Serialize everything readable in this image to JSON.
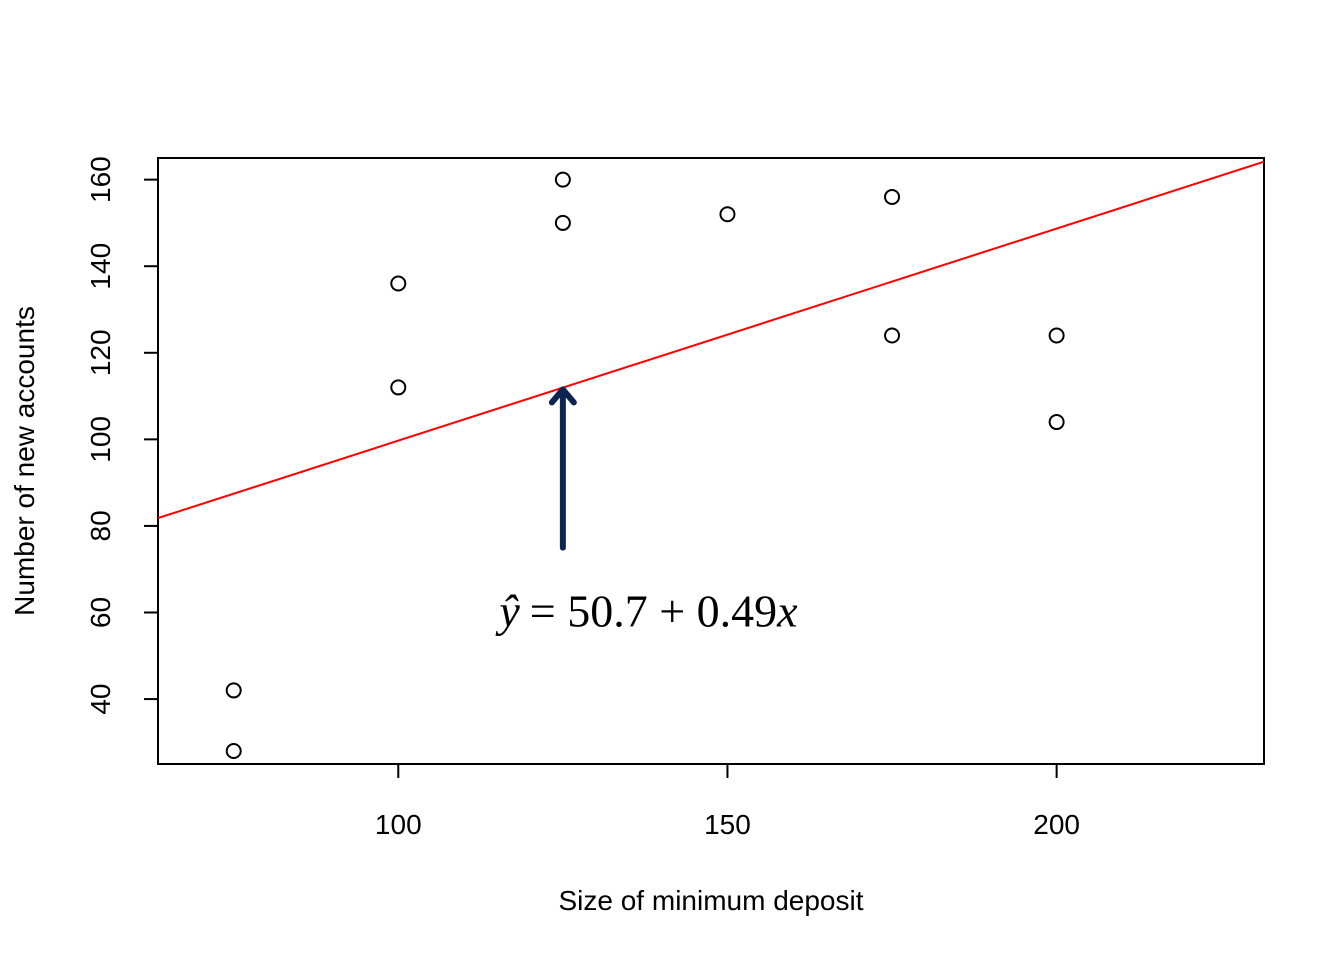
{
  "chart_data": {
    "type": "scatter",
    "title": "",
    "xlabel": "Size of minimum deposit",
    "ylabel": "Number of new accounts",
    "xlim": [
      63.5,
      231.5
    ],
    "ylim": [
      25.0,
      165.0
    ],
    "x_ticks": [
      100,
      150,
      200
    ],
    "y_ticks": [
      40,
      60,
      80,
      100,
      120,
      140,
      160
    ],
    "points": [
      {
        "x": 75,
        "y": 28
      },
      {
        "x": 75,
        "y": 42
      },
      {
        "x": 100,
        "y": 112
      },
      {
        "x": 100,
        "y": 136
      },
      {
        "x": 125,
        "y": 150
      },
      {
        "x": 125,
        "y": 160
      },
      {
        "x": 150,
        "y": 152
      },
      {
        "x": 175,
        "y": 124
      },
      {
        "x": 175,
        "y": 156
      },
      {
        "x": 200,
        "y": 104
      },
      {
        "x": 200,
        "y": 124
      }
    ],
    "regression_line": {
      "intercept": 50.7,
      "slope": 0.49,
      "color": "#ff0000"
    },
    "annotation": {
      "arrow": {
        "x": 125,
        "y_start": 75,
        "y_end": 112,
        "color": "#0d2453"
      },
      "equation": {
        "yhat": "ŷ",
        "rest": "= 50.7 + 0.49",
        "var": "x",
        "x": 138,
        "y": 60
      }
    },
    "grid": false,
    "legend": "none"
  }
}
